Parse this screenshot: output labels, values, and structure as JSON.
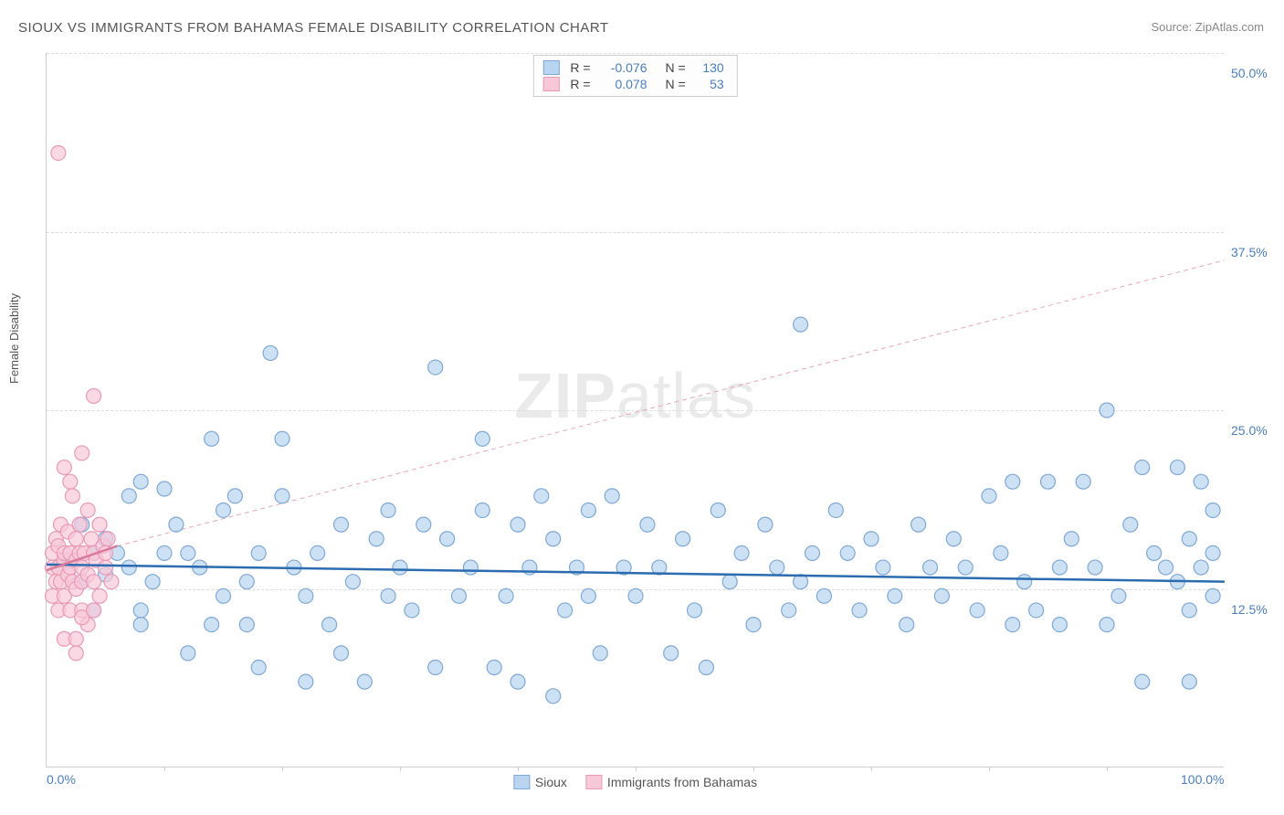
{
  "title": "SIOUX VS IMMIGRANTS FROM BAHAMAS FEMALE DISABILITY CORRELATION CHART",
  "source_label": "Source: ",
  "source_name": "ZipAtlas.com",
  "ylabel": "Female Disability",
  "watermark_a": "ZIP",
  "watermark_b": "atlas",
  "chart": {
    "type": "scatter",
    "xlim": [
      0,
      100
    ],
    "ylim": [
      0,
      50
    ],
    "x_ticks": [
      0,
      100
    ],
    "x_tick_labels": [
      "0.0%",
      "100.0%"
    ],
    "y_ticks": [
      12.5,
      25.0,
      37.5,
      50.0
    ],
    "y_tick_labels": [
      "12.5%",
      "25.0%",
      "37.5%",
      "50.0%"
    ],
    "grid_color": "#dddddd",
    "axis_color": "#cccccc",
    "background_color": "#ffffff",
    "marker_radius": 8,
    "marker_stroke_width": 1.2,
    "series": [
      {
        "name": "Sioux",
        "fill": "#b8d4f0",
        "stroke": "#7fa8d4",
        "fill_opacity": 0.7,
        "R": "-0.076",
        "N": "130",
        "trend": {
          "x1": 0,
          "y1": 14.2,
          "x2": 100,
          "y2": 13.0,
          "color": "#2b6cb0",
          "width": 2.5,
          "dash": "none"
        },
        "trend_ext": null,
        "points": [
          [
            2,
            14.5
          ],
          [
            3,
            13
          ],
          [
            3,
            17
          ],
          [
            4,
            15
          ],
          [
            4,
            11
          ],
          [
            5,
            13.5
          ],
          [
            5,
            16
          ],
          [
            6,
            15
          ],
          [
            7,
            19
          ],
          [
            7,
            14
          ],
          [
            8,
            20
          ],
          [
            8,
            11
          ],
          [
            8,
            10
          ],
          [
            9,
            13
          ],
          [
            10,
            19.5
          ],
          [
            10,
            15
          ],
          [
            11,
            17
          ],
          [
            12,
            15
          ],
          [
            12,
            8
          ],
          [
            13,
            14
          ],
          [
            14,
            10
          ],
          [
            14,
            23
          ],
          [
            15,
            12
          ],
          [
            15,
            18
          ],
          [
            16,
            19
          ],
          [
            17,
            13
          ],
          [
            17,
            10
          ],
          [
            18,
            7
          ],
          [
            18,
            15
          ],
          [
            19,
            29
          ],
          [
            20,
            19
          ],
          [
            20,
            23
          ],
          [
            21,
            14
          ],
          [
            22,
            12
          ],
          [
            22,
            6
          ],
          [
            23,
            15
          ],
          [
            24,
            10
          ],
          [
            25,
            17
          ],
          [
            25,
            8
          ],
          [
            26,
            13
          ],
          [
            27,
            6
          ],
          [
            28,
            16
          ],
          [
            29,
            12
          ],
          [
            29,
            18
          ],
          [
            30,
            14
          ],
          [
            31,
            11
          ],
          [
            32,
            17
          ],
          [
            33,
            7
          ],
          [
            33,
            28
          ],
          [
            34,
            16
          ],
          [
            35,
            12
          ],
          [
            36,
            14
          ],
          [
            37,
            18
          ],
          [
            37,
            23
          ],
          [
            38,
            7
          ],
          [
            39,
            12
          ],
          [
            40,
            6
          ],
          [
            40,
            17
          ],
          [
            41,
            14
          ],
          [
            42,
            19
          ],
          [
            43,
            5
          ],
          [
            43,
            16
          ],
          [
            44,
            11
          ],
          [
            45,
            14
          ],
          [
            46,
            12
          ],
          [
            46,
            18
          ],
          [
            47,
            8
          ],
          [
            48,
            19
          ],
          [
            49,
            14
          ],
          [
            50,
            12
          ],
          [
            51,
            17
          ],
          [
            52,
            14
          ],
          [
            53,
            8
          ],
          [
            54,
            16
          ],
          [
            55,
            11
          ],
          [
            56,
            7
          ],
          [
            57,
            18
          ],
          [
            58,
            13
          ],
          [
            59,
            15
          ],
          [
            60,
            10
          ],
          [
            61,
            17
          ],
          [
            62,
            14
          ],
          [
            63,
            11
          ],
          [
            64,
            13
          ],
          [
            64,
            31
          ],
          [
            65,
            15
          ],
          [
            66,
            12
          ],
          [
            67,
            18
          ],
          [
            68,
            15
          ],
          [
            69,
            11
          ],
          [
            70,
            16
          ],
          [
            71,
            14
          ],
          [
            72,
            12
          ],
          [
            73,
            10
          ],
          [
            74,
            17
          ],
          [
            75,
            14
          ],
          [
            76,
            12
          ],
          [
            77,
            16
          ],
          [
            78,
            14
          ],
          [
            79,
            11
          ],
          [
            80,
            19
          ],
          [
            81,
            15
          ],
          [
            82,
            10
          ],
          [
            82,
            20
          ],
          [
            83,
            13
          ],
          [
            84,
            11
          ],
          [
            85,
            20
          ],
          [
            86,
            14
          ],
          [
            86,
            10
          ],
          [
            87,
            16
          ],
          [
            88,
            20
          ],
          [
            89,
            14
          ],
          [
            90,
            25
          ],
          [
            90,
            10
          ],
          [
            91,
            12
          ],
          [
            92,
            17
          ],
          [
            93,
            21
          ],
          [
            93,
            6
          ],
          [
            94,
            15
          ],
          [
            95,
            14
          ],
          [
            96,
            13
          ],
          [
            96,
            21
          ],
          [
            97,
            16
          ],
          [
            97,
            11
          ],
          [
            97,
            6
          ],
          [
            98,
            14
          ],
          [
            98,
            20
          ],
          [
            99,
            15
          ],
          [
            99,
            12
          ],
          [
            99,
            18
          ]
        ]
      },
      {
        "name": "Immigrants from Bahamas",
        "fill": "#f8c8d8",
        "stroke": "#e89ab5",
        "fill_opacity": 0.7,
        "R": "0.078",
        "N": "53",
        "trend": {
          "x1": 0,
          "y1": 13.8,
          "x2": 6,
          "y2": 15.5,
          "color": "#d87a9a",
          "width": 2.5,
          "dash": "none"
        },
        "trend_ext": {
          "x1": 6,
          "y1": 15.5,
          "x2": 100,
          "y2": 35.5,
          "color": "#e8a8bc",
          "width": 1,
          "dash": "5,4"
        },
        "points": [
          [
            0.5,
            14
          ],
          [
            0.5,
            12
          ],
          [
            0.5,
            15
          ],
          [
            0.8,
            13
          ],
          [
            0.8,
            16
          ],
          [
            1,
            14
          ],
          [
            1,
            11
          ],
          [
            1,
            15.5
          ],
          [
            1.2,
            13
          ],
          [
            1.2,
            17
          ],
          [
            1.5,
            14.5
          ],
          [
            1.5,
            12
          ],
          [
            1.5,
            15
          ],
          [
            1.5,
            9
          ],
          [
            1.8,
            13.5
          ],
          [
            1.8,
            16.5
          ],
          [
            2,
            14
          ],
          [
            2,
            11
          ],
          [
            2,
            20
          ],
          [
            2,
            15
          ],
          [
            2.2,
            19
          ],
          [
            2.2,
            13
          ],
          [
            2.5,
            16
          ],
          [
            2.5,
            12.5
          ],
          [
            2.5,
            14.5
          ],
          [
            2.5,
            8
          ],
          [
            2.8,
            15
          ],
          [
            2.8,
            17
          ],
          [
            3,
            13
          ],
          [
            3,
            22
          ],
          [
            3,
            11
          ],
          [
            3,
            14
          ],
          [
            3.2,
            15
          ],
          [
            3.5,
            13.5
          ],
          [
            3.5,
            18
          ],
          [
            3.5,
            10
          ],
          [
            3.8,
            16
          ],
          [
            4,
            15
          ],
          [
            4,
            13
          ],
          [
            4,
            26
          ],
          [
            4.2,
            14.5
          ],
          [
            4.5,
            17
          ],
          [
            4.5,
            12
          ],
          [
            4.8,
            15.5
          ],
          [
            5,
            14
          ],
          [
            5.2,
            16
          ],
          [
            5.5,
            13
          ],
          [
            1,
            43
          ],
          [
            1.5,
            21
          ],
          [
            2.5,
            9
          ],
          [
            3,
            10.5
          ],
          [
            4,
            11
          ],
          [
            5,
            15
          ]
        ]
      }
    ]
  },
  "legend_top": {
    "r_label": "R =",
    "n_label": "N ="
  },
  "legend_bottom": [
    {
      "label": "Sioux",
      "fill": "#b8d4f0",
      "stroke": "#7fa8d4"
    },
    {
      "label": "Immigrants from Bahamas",
      "fill": "#f8c8d8",
      "stroke": "#e89ab5"
    }
  ]
}
